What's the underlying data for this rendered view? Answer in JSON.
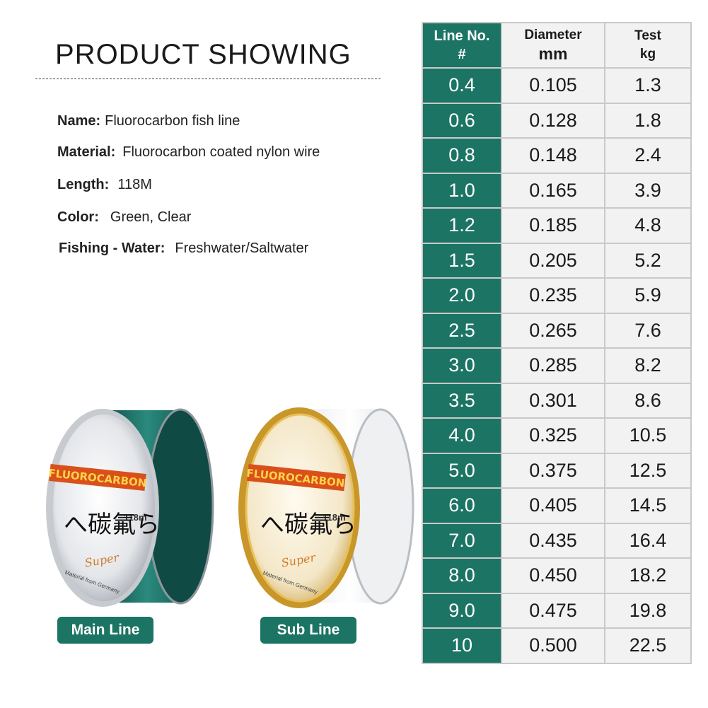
{
  "header": {
    "title": "PRODUCT SHOWING"
  },
  "specs": [
    {
      "key": "Name:",
      "value": "Fluorocarbon fish line"
    },
    {
      "key": "Material:",
      "value": "Fluorocarbon coated nylon wire"
    },
    {
      "key": "Length:",
      "value": "118M"
    },
    {
      "key": "Color:",
      "value": "Green, Clear"
    },
    {
      "key": "Fishing - Water:",
      "value": "Freshwater/Saltwater"
    }
  ],
  "products": {
    "main": {
      "label": "Main Line",
      "brand": "FLUOROCARBON",
      "length": "118m",
      "script": "Super",
      "origin": "Material from Germany",
      "color": "#1c6b63"
    },
    "sub": {
      "label": "Sub Line",
      "brand": "FLUOROCARBON",
      "length": "118m",
      "script": "Super",
      "origin": "Material from Germany",
      "color": "#d9a531"
    }
  },
  "table": {
    "headers": [
      {
        "line1": "Line No.",
        "line2": "#"
      },
      {
        "line1": "Diameter",
        "line2": "mm"
      },
      {
        "line1": "Test",
        "line2": "kg"
      }
    ],
    "rows": [
      [
        "0.4",
        "0.105",
        "1.3"
      ],
      [
        "0.6",
        "0.128",
        "1.8"
      ],
      [
        "0.8",
        "0.148",
        "2.4"
      ],
      [
        "1.0",
        "0.165",
        "3.9"
      ],
      [
        "1.2",
        "0.185",
        "4.8"
      ],
      [
        "1.5",
        "0.205",
        "5.2"
      ],
      [
        "2.0",
        "0.235",
        "5.9"
      ],
      [
        "2.5",
        "0.265",
        "7.6"
      ],
      [
        "3.0",
        "0.285",
        "8.2"
      ],
      [
        "3.5",
        "0.301",
        "8.6"
      ],
      [
        "4.0",
        "0.325",
        "10.5"
      ],
      [
        "5.0",
        "0.375",
        "12.5"
      ],
      [
        "6.0",
        "0.405",
        "14.5"
      ],
      [
        "7.0",
        "0.435",
        "16.4"
      ],
      [
        "8.0",
        "0.450",
        "18.2"
      ],
      [
        "9.0",
        "0.475",
        "19.8"
      ],
      [
        "10",
        "0.500",
        "22.5"
      ]
    ]
  },
  "colors": {
    "accent": "#1c7464",
    "table_bg": "#f2f2f2",
    "grid": "#c9c9c9"
  }
}
